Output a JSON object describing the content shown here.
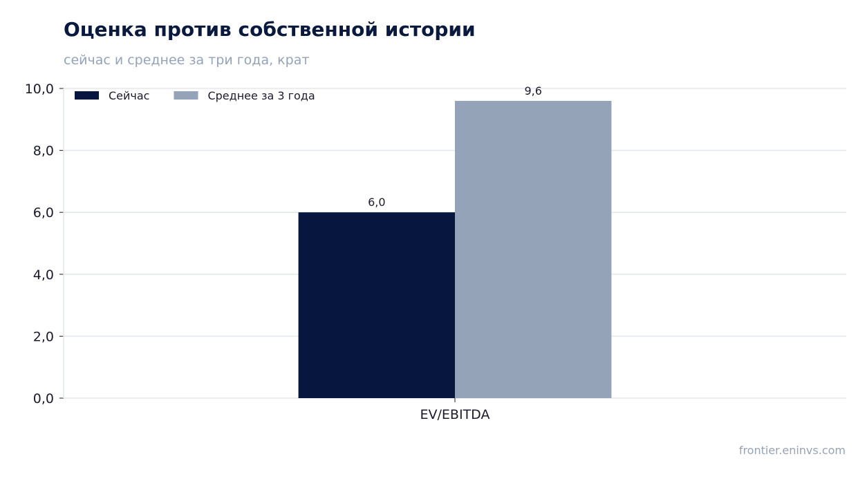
{
  "header": {
    "title": "Оценка против собственной истории",
    "subtitle": "сейчас и среднее за три года, крат"
  },
  "footer": {
    "source": "frontier.eninvs.com"
  },
  "chart_data": {
    "type": "bar",
    "categories": [
      "EV/EBITDA"
    ],
    "series": [
      {
        "name": "Сейчас",
        "values": [
          6.0
        ],
        "labels": [
          "6,0"
        ],
        "color": "#06163f"
      },
      {
        "name": "Среднее за 3 года",
        "values": [
          9.6
        ],
        "labels": [
          "9,6"
        ],
        "color": "#94a3b8"
      }
    ],
    "ylim": [
      0,
      10
    ],
    "yticks": [
      0,
      2,
      4,
      6,
      8,
      10
    ],
    "ytick_labels": [
      "0,0",
      "2,0",
      "4,0",
      "6,0",
      "8,0",
      "10,0"
    ],
    "grid": true,
    "legend_position": "top-left"
  }
}
